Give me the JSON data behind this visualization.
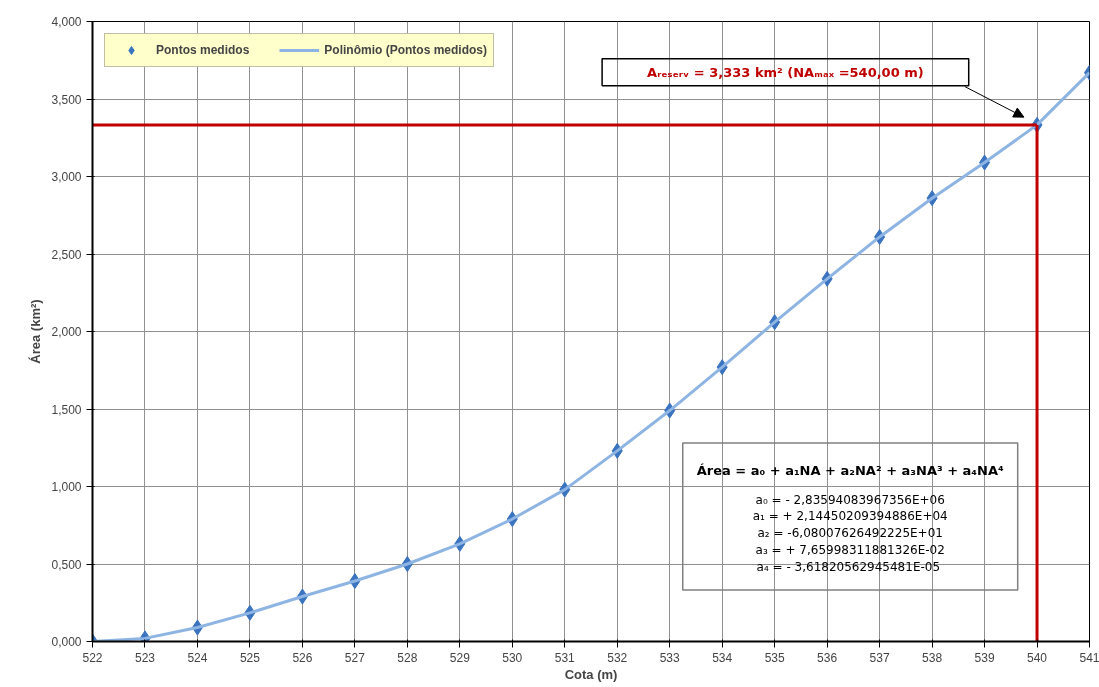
{
  "chart_data": {
    "type": "scatter",
    "xlabel": "Cota (m)",
    "ylabel": "Área (km²)",
    "x": [
      522,
      523,
      524,
      525,
      526,
      527,
      528,
      529,
      530,
      531,
      532,
      533,
      534,
      535,
      536,
      537,
      538,
      539,
      540,
      541
    ],
    "series": [
      {
        "name": "Pontos medidos",
        "marker": "diamond",
        "color": "#3a73c0",
        "values": [
          0.0,
          0.02,
          0.09,
          0.185,
          0.29,
          0.39,
          0.5,
          0.63,
          0.79,
          0.98,
          1.23,
          1.49,
          1.77,
          2.06,
          2.34,
          2.61,
          2.86,
          3.09,
          3.333,
          3.67
        ]
      },
      {
        "name": "Polinômio (Pontos medidos)",
        "type": "line",
        "line_style": "solid",
        "color": "#8db4e2",
        "values": [
          0.0,
          0.02,
          0.09,
          0.185,
          0.29,
          0.39,
          0.5,
          0.63,
          0.79,
          0.98,
          1.23,
          1.49,
          1.77,
          2.06,
          2.34,
          2.61,
          2.86,
          3.09,
          3.333,
          3.67
        ]
      }
    ],
    "xlim": [
      522,
      541
    ],
    "xticks": [
      522,
      523,
      524,
      525,
      526,
      527,
      528,
      529,
      530,
      531,
      532,
      533,
      534,
      535,
      536,
      537,
      538,
      539,
      540,
      541
    ],
    "ylim": [
      0,
      4
    ],
    "yticks": [
      {
        "value": 0,
        "label": "0,000"
      },
      {
        "value": 0.5,
        "label": "0,500"
      },
      {
        "value": 1,
        "label": "1,000"
      },
      {
        "value": 1.5,
        "label": "1,500"
      },
      {
        "value": 2,
        "label": "2,000"
      },
      {
        "value": 2.5,
        "label": "2,500"
      },
      {
        "value": 3,
        "label": "3,000"
      },
      {
        "value": 3.5,
        "label": "3,500"
      },
      {
        "value": 4,
        "label": "4,000"
      }
    ],
    "grid": true,
    "legend": "top left",
    "ref_lines": [
      {
        "axis": "y",
        "value": 3.333,
        "color": "#c00000"
      },
      {
        "axis": "x",
        "value": 540,
        "color": "#c00000"
      }
    ],
    "annotations": [
      "Aᵣₑₛₑᵣᵥ = 3,333 km² (NAₘₐₓ =540,00 m)",
      "Área = a₀ + a₁NA + a₂NA² + a₃NA³ + a₄NA⁴",
      "a₀ = - 2,83594083967356E+06",
      "a₁ = + 2,14450209394886E+04",
      "a₂ = -6,08007626492225E+01",
      "a₃ = + 7,65998311881326E-02",
      "a₄ =  - 3,61820562945481E-05"
    ]
  }
}
